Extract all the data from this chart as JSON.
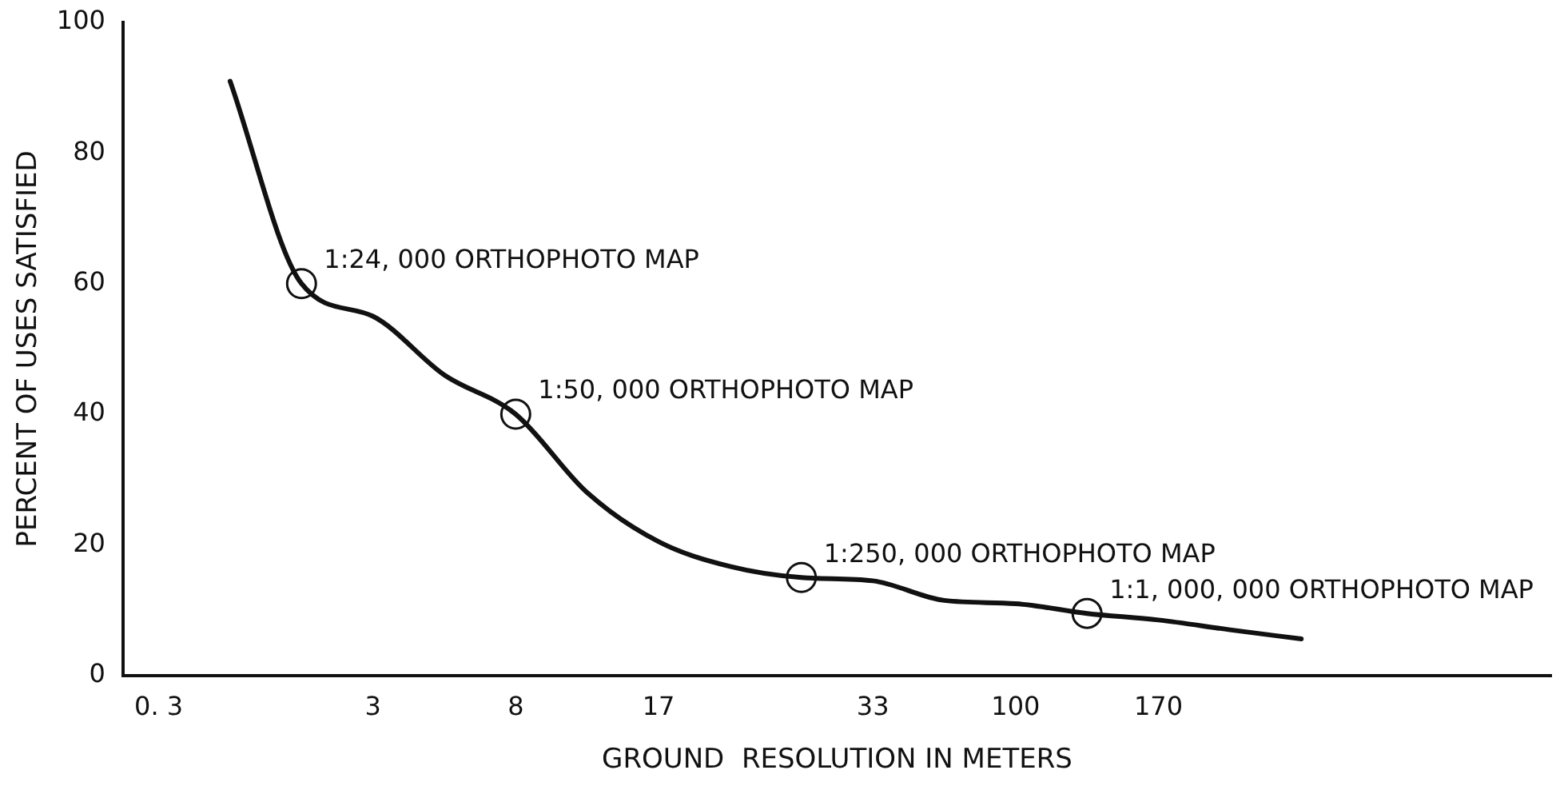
{
  "chart_data": {
    "type": "line",
    "xlabel": "GROUND  RESOLUTION IN METERS",
    "ylabel": "PERCENT OF USES SATISFIED",
    "categories": [
      "0. 3",
      null,
      null,
      "3",
      null,
      "8",
      null,
      "17",
      null,
      null,
      "33",
      null,
      "100",
      null,
      "170",
      null,
      null,
      null,
      null,
      null
    ],
    "ylim": [
      0,
      100
    ],
    "yticks": [
      0,
      20,
      40,
      60,
      80,
      100
    ],
    "grid": false,
    "legend": false,
    "series": [
      {
        "color": "#111111",
        "line_style": "solid",
        "values": [
          null,
          91,
          60,
          55,
          46,
          40,
          28,
          20.5,
          16.7,
          15,
          14.5,
          11.5,
          11,
          9.5,
          8.5,
          7,
          5.6,
          null,
          null,
          null
        ]
      },
      {
        "type": "scatter",
        "color": "#111111",
        "marker": "circle",
        "values": [
          null,
          null,
          60,
          null,
          null,
          40,
          null,
          null,
          null,
          15,
          null,
          null,
          null,
          9.5,
          null,
          null,
          null,
          null,
          null,
          null
        ]
      }
    ],
    "annotations": [
      "1:24, 000 ORTHOPHOTO MAP",
      "1:50, 000 ORTHOPHOTO MAP",
      "1:250, 000 ORTHOPHOTO MAP",
      "1:1, 000, 000 ORTHOPHOTO MAP"
    ]
  }
}
